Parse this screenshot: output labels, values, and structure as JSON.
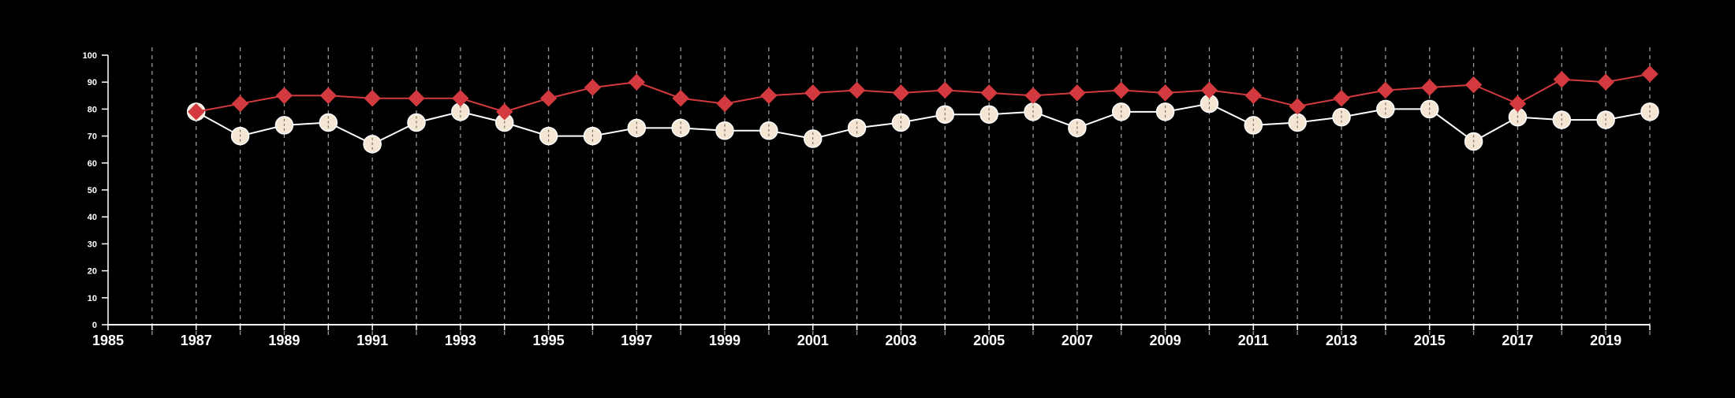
{
  "chart_data": {
    "type": "line",
    "title": "",
    "xlabel": "",
    "ylabel": "",
    "xlim": [
      1985,
      2020
    ],
    "ylim": [
      0,
      100
    ],
    "x_ticks": [
      1985,
      1987,
      1989,
      1991,
      1993,
      1995,
      1997,
      1999,
      2001,
      2003,
      2005,
      2007,
      2009,
      2011,
      2013,
      2015,
      2017,
      2019
    ],
    "y_ticks": [
      0,
      10,
      20,
      30,
      40,
      50,
      60,
      70,
      80,
      90,
      100
    ],
    "vertical_grid": "dashed, every year",
    "background": "#000000",
    "x": [
      1987,
      1988,
      1989,
      1990,
      1991,
      1992,
      1993,
      1994,
      1995,
      1996,
      1997,
      1998,
      1999,
      2000,
      2001,
      2002,
      2003,
      2004,
      2005,
      2006,
      2007,
      2008,
      2009,
      2010,
      2011,
      2012,
      2013,
      2014,
      2015,
      2016,
      2017,
      2018,
      2019,
      2020
    ],
    "series": [
      {
        "color": "#f5e6d3",
        "line_color": "#ffffff",
        "marker": "circle",
        "values": [
          79,
          70,
          74,
          75,
          67,
          75,
          79,
          75,
          70,
          70,
          73,
          73,
          72,
          72,
          69,
          73,
          75,
          78,
          78,
          79,
          73,
          79,
          79,
          82,
          74,
          75,
          77,
          80,
          80,
          68,
          77,
          76,
          76,
          79
        ]
      },
      {
        "color": "#d33a3f",
        "line_color": "#d33a3f",
        "marker": "diamond",
        "values": [
          79,
          82,
          85,
          85,
          84,
          84,
          84,
          79,
          84,
          88,
          90,
          84,
          82,
          85,
          86,
          87,
          86,
          87,
          86,
          85,
          86,
          87,
          86,
          87,
          85,
          81,
          84,
          87,
          88,
          89,
          82,
          91,
          90,
          93
        ]
      }
    ]
  }
}
